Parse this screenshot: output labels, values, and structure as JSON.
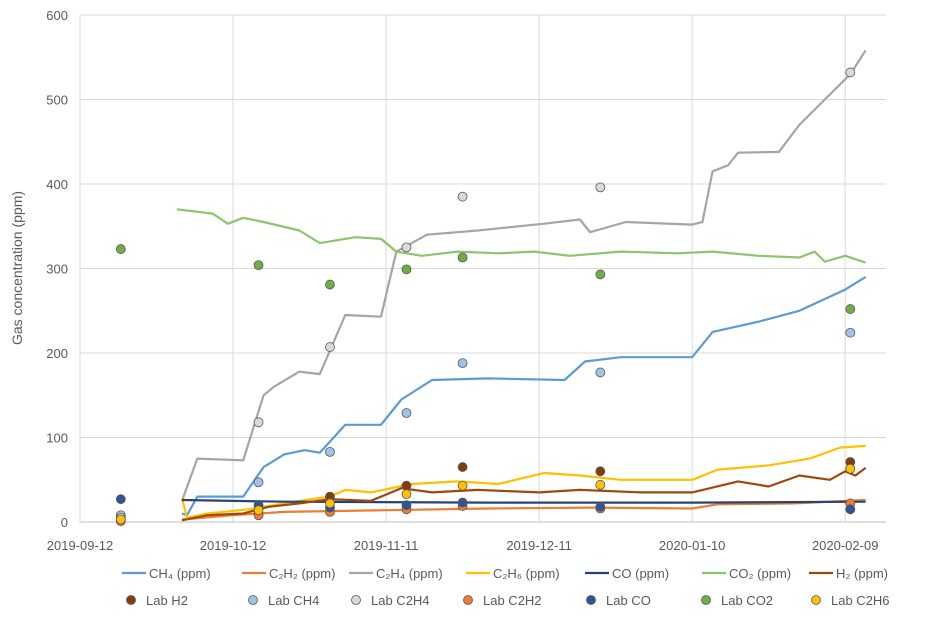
{
  "chart_data": {
    "type": "line",
    "title": "",
    "xlabel": "",
    "ylabel": "Gas concentration (ppm)",
    "xlim": [
      "2019-09-12",
      "2020-02-17"
    ],
    "ylim": [
      0,
      600
    ],
    "xticks": [
      "2019-09-12",
      "2019-10-12",
      "2019-11-11",
      "2019-12-11",
      "2020-01-10",
      "2020-02-09"
    ],
    "yticks": [
      0,
      100,
      200,
      300,
      400,
      500,
      600
    ],
    "grid": true,
    "legend_position": "bottom",
    "series": [
      {
        "name": "CH₄ (ppm)",
        "color": "#5B9BD5",
        "points": [
          [
            "2019-10-02",
            10
          ],
          [
            "2019-10-03",
            8
          ],
          [
            "2019-10-05",
            30
          ],
          [
            "2019-10-14",
            30
          ],
          [
            "2019-10-18",
            65
          ],
          [
            "2019-10-22",
            80
          ],
          [
            "2019-10-26",
            85
          ],
          [
            "2019-10-29",
            82
          ],
          [
            "2019-11-03",
            115
          ],
          [
            "2019-11-10",
            115
          ],
          [
            "2019-11-14",
            145
          ],
          [
            "2019-11-20",
            168
          ],
          [
            "2019-12-01",
            170
          ],
          [
            "2019-12-16",
            168
          ],
          [
            "2019-12-20",
            190
          ],
          [
            "2019-12-27",
            195
          ],
          [
            "2020-01-10",
            195
          ],
          [
            "2020-01-14",
            225
          ],
          [
            "2020-01-23",
            237
          ],
          [
            "2020-01-31",
            250
          ],
          [
            "2020-02-09",
            275
          ],
          [
            "2020-02-13",
            290
          ]
        ]
      },
      {
        "name": "C₂H₂ (ppm)",
        "color": "#ED7D31",
        "points": [
          [
            "2019-10-02",
            3
          ],
          [
            "2019-10-12",
            8
          ],
          [
            "2019-10-22",
            12
          ],
          [
            "2019-11-11",
            14
          ],
          [
            "2019-12-01",
            16
          ],
          [
            "2019-12-21",
            17
          ],
          [
            "2020-01-10",
            16
          ],
          [
            "2020-01-15",
            21
          ],
          [
            "2020-01-30",
            22
          ],
          [
            "2020-02-13",
            26
          ]
        ]
      },
      {
        "name": "C₂H₄ (ppm)",
        "color": "#A5A5A5",
        "points": [
          [
            "2019-10-02",
            25
          ],
          [
            "2019-10-05",
            75
          ],
          [
            "2019-10-14",
            73
          ],
          [
            "2019-10-18",
            150
          ],
          [
            "2019-10-20",
            160
          ],
          [
            "2019-10-25",
            178
          ],
          [
            "2019-10-29",
            175
          ],
          [
            "2019-11-03",
            245
          ],
          [
            "2019-11-10",
            243
          ],
          [
            "2019-11-13",
            320
          ],
          [
            "2019-11-19",
            340
          ],
          [
            "2019-11-29",
            345
          ],
          [
            "2019-12-12",
            353
          ],
          [
            "2019-12-19",
            358
          ],
          [
            "2019-12-21",
            343
          ],
          [
            "2019-12-28",
            355
          ],
          [
            "2020-01-10",
            352
          ],
          [
            "2020-01-12",
            355
          ],
          [
            "2020-01-14",
            415
          ],
          [
            "2020-01-17",
            422
          ],
          [
            "2020-01-19",
            437
          ],
          [
            "2020-01-27",
            438
          ],
          [
            "2020-01-31",
            470
          ],
          [
            "2020-02-05",
            500
          ],
          [
            "2020-02-10",
            530
          ],
          [
            "2020-02-13",
            558
          ]
        ]
      },
      {
        "name": "C₂H₆ (ppm)",
        "color": "#FFC000",
        "points": [
          [
            "2019-10-02",
            28
          ],
          [
            "2019-10-03",
            5
          ],
          [
            "2019-10-07",
            10
          ],
          [
            "2019-10-15",
            15
          ],
          [
            "2019-10-25",
            25
          ],
          [
            "2019-10-31",
            30
          ],
          [
            "2019-11-03",
            38
          ],
          [
            "2019-11-08",
            35
          ],
          [
            "2019-11-16",
            45
          ],
          [
            "2019-11-25",
            48
          ],
          [
            "2019-12-03",
            45
          ],
          [
            "2019-12-12",
            58
          ],
          [
            "2019-12-19",
            55
          ],
          [
            "2019-12-27",
            50
          ],
          [
            "2020-01-10",
            50
          ],
          [
            "2020-01-15",
            62
          ],
          [
            "2020-01-25",
            67
          ],
          [
            "2020-02-02",
            75
          ],
          [
            "2020-02-08",
            88
          ],
          [
            "2020-02-13",
            90
          ]
        ]
      },
      {
        "name": "CO (ppm)",
        "color": "#264478",
        "points": [
          [
            "2019-10-02",
            26
          ],
          [
            "2019-10-22",
            24
          ],
          [
            "2019-12-01",
            23
          ],
          [
            "2020-01-10",
            23
          ],
          [
            "2020-02-13",
            24
          ]
        ]
      },
      {
        "name": "CO₂ (ppm)",
        "color": "#8CC66A",
        "points": [
          [
            "2019-10-01",
            370
          ],
          [
            "2019-10-08",
            365
          ],
          [
            "2019-10-11",
            353
          ],
          [
            "2019-10-14",
            360
          ],
          [
            "2019-10-18",
            355
          ],
          [
            "2019-10-25",
            345
          ],
          [
            "2019-10-29",
            330
          ],
          [
            "2019-11-05",
            337
          ],
          [
            "2019-11-10",
            335
          ],
          [
            "2019-11-13",
            320
          ],
          [
            "2019-11-18",
            315
          ],
          [
            "2019-11-25",
            320
          ],
          [
            "2019-12-03",
            318
          ],
          [
            "2019-12-10",
            320
          ],
          [
            "2019-12-17",
            315
          ],
          [
            "2019-12-27",
            320
          ],
          [
            "2020-01-07",
            318
          ],
          [
            "2020-01-14",
            320
          ],
          [
            "2020-01-23",
            315
          ],
          [
            "2020-01-31",
            313
          ],
          [
            "2020-02-03",
            320
          ],
          [
            "2020-02-05",
            308
          ],
          [
            "2020-02-09",
            315
          ],
          [
            "2020-02-13",
            307
          ]
        ]
      },
      {
        "name": "H₂ (ppm)",
        "color": "#9E480E",
        "points": [
          [
            "2019-10-02",
            2
          ],
          [
            "2019-10-07",
            8
          ],
          [
            "2019-10-14",
            10
          ],
          [
            "2019-10-19",
            18
          ],
          [
            "2019-10-25",
            22
          ],
          [
            "2019-10-31",
            27
          ],
          [
            "2019-11-08",
            25
          ],
          [
            "2019-11-14",
            40
          ],
          [
            "2019-11-20",
            35
          ],
          [
            "2019-11-29",
            38
          ],
          [
            "2019-12-11",
            35
          ],
          [
            "2019-12-19",
            38
          ],
          [
            "2019-12-31",
            35
          ],
          [
            "2020-01-10",
            35
          ],
          [
            "2020-01-19",
            48
          ],
          [
            "2020-01-25",
            42
          ],
          [
            "2020-01-31",
            55
          ],
          [
            "2020-02-06",
            50
          ],
          [
            "2020-02-09",
            60
          ],
          [
            "2020-02-11",
            55
          ],
          [
            "2020-02-13",
            64
          ]
        ]
      }
    ],
    "scatter_series": [
      {
        "name": "Lab H2",
        "color": "#843C0C",
        "points": [
          [
            "2019-09-20",
            2
          ],
          [
            "2019-10-17",
            10
          ],
          [
            "2019-10-31",
            30
          ],
          [
            "2019-11-15",
            43
          ],
          [
            "2019-11-26",
            65
          ],
          [
            "2019-12-23",
            60
          ],
          [
            "2020-02-10",
            71
          ]
        ]
      },
      {
        "name": "Lab CH4",
        "color": "#9DC3E6",
        "points": [
          [
            "2019-09-20",
            8
          ],
          [
            "2019-10-17",
            47
          ],
          [
            "2019-10-31",
            83
          ],
          [
            "2019-11-15",
            129
          ],
          [
            "2019-11-26",
            188
          ],
          [
            "2019-12-23",
            177
          ],
          [
            "2020-02-10",
            224
          ]
        ]
      },
      {
        "name": "Lab C2H4",
        "color": "#D9D9D9",
        "points": [
          [
            "2019-09-20",
            5
          ],
          [
            "2019-10-17",
            118
          ],
          [
            "2019-10-31",
            207
          ],
          [
            "2019-11-15",
            325
          ],
          [
            "2019-11-26",
            385
          ],
          [
            "2019-12-23",
            396
          ],
          [
            "2020-02-10",
            532
          ]
        ]
      },
      {
        "name": "Lab C2H2",
        "color": "#ED7D31",
        "points": [
          [
            "2019-09-20",
            1
          ],
          [
            "2019-10-17",
            8
          ],
          [
            "2019-10-31",
            12
          ],
          [
            "2019-11-15",
            15
          ],
          [
            "2019-11-26",
            19
          ],
          [
            "2019-12-23",
            16
          ],
          [
            "2020-02-10",
            22
          ]
        ]
      },
      {
        "name": "Lab CO",
        "color": "#2F5597",
        "points": [
          [
            "2019-09-20",
            27
          ],
          [
            "2019-10-17",
            20
          ],
          [
            "2019-10-31",
            17
          ],
          [
            "2019-11-15",
            20
          ],
          [
            "2019-11-26",
            23
          ],
          [
            "2019-12-23",
            18
          ],
          [
            "2020-02-10",
            15
          ]
        ]
      },
      {
        "name": "Lab CO2",
        "color": "#70AD47",
        "points": [
          [
            "2019-09-20",
            323
          ],
          [
            "2019-10-17",
            304
          ],
          [
            "2019-10-31",
            281
          ],
          [
            "2019-11-15",
            299
          ],
          [
            "2019-11-26",
            313
          ],
          [
            "2019-12-23",
            293
          ],
          [
            "2020-02-10",
            252
          ]
        ]
      },
      {
        "name": "Lab C2H6",
        "color": "#FFC000",
        "points": [
          [
            "2019-09-20",
            3
          ],
          [
            "2019-10-17",
            14
          ],
          [
            "2019-10-31",
            22
          ],
          [
            "2019-11-15",
            33
          ],
          [
            "2019-11-26",
            43
          ],
          [
            "2019-12-23",
            44
          ],
          [
            "2020-02-10",
            63
          ]
        ]
      }
    ]
  }
}
